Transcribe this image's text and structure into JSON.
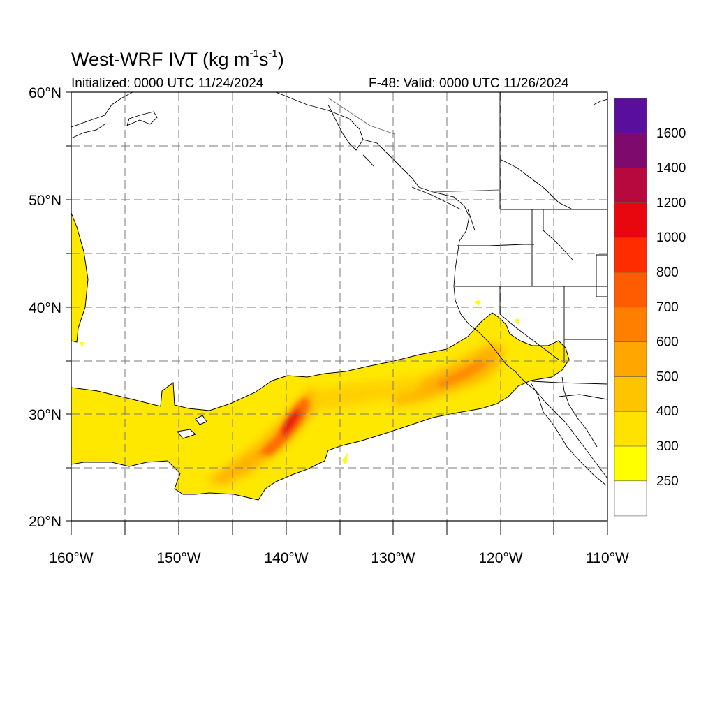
{
  "title": {
    "main_text": "West-WRF IVT (kg m",
    "sup1": "-1",
    "mid": "s",
    "sup2": "-1",
    "end": ")"
  },
  "subtitle_left": "Initialized: 0000 UTC 11/24/2024",
  "subtitle_right": "F-48: Valid: 0000 UTC 11/26/2024",
  "map": {
    "lon_range": [
      -160,
      -110
    ],
    "lat_range": [
      20,
      60
    ],
    "lon_labels": [
      "160°W",
      "150°W",
      "140°W",
      "130°W",
      "120°W",
      "110°W"
    ],
    "lat_labels": [
      "60°N",
      "50°N",
      "40°N",
      "30°N",
      "20°N"
    ],
    "gridlines": "dashed every 5°"
  },
  "colorbar": {
    "labels": [
      "1600",
      "1400",
      "1200",
      "1000",
      "800",
      "700",
      "600",
      "500",
      "400",
      "300",
      "250"
    ],
    "colors": [
      "#5a0e9c",
      "#7f0a6e",
      "#b8093f",
      "#e8070f",
      "#ff2c00",
      "#ff5b00",
      "#ff8000",
      "#ffa600",
      "#ffc400",
      "#ffe200",
      "#ffff00",
      "#ffffff"
    ]
  }
}
